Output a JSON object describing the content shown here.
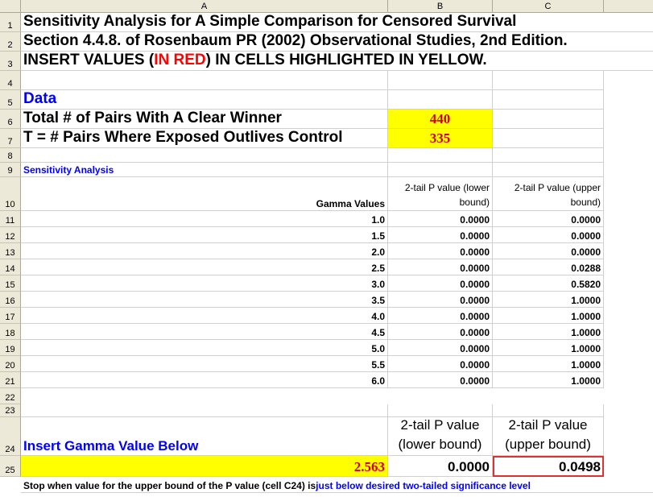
{
  "columns": [
    "A",
    "B",
    "C"
  ],
  "rows": [
    "1",
    "2",
    "3",
    "4",
    "5",
    "6",
    "7",
    "8",
    "9",
    "10",
    "11",
    "12",
    "13",
    "14",
    "15",
    "16",
    "17",
    "18",
    "19",
    "20",
    "21",
    "22",
    "23",
    "24",
    "25"
  ],
  "title": "Sensitivity Analysis for A Simple Comparison for Censored Survival",
  "section": "Section 4.4.8. of Rosenbaum PR (2002) Observational Studies, 2nd Edition.",
  "instruction": {
    "before": "INSERT VALUES (",
    "red": "IN RED",
    "after": ") IN CELLS HIGHLIGHTED IN YELLOW."
  },
  "data_heading": "Data",
  "total_pairs_label": "Total # of Pairs With A Clear Winner",
  "total_pairs_value": "440",
  "t_label": "T = # Pairs Where Exposed Outlives Control",
  "t_value": "335",
  "sensitivity_heading": "Sensitivity Analysis",
  "table": {
    "gamma_header": "Gamma Values",
    "lower_header": "2-tail P value (lower bound)",
    "upper_header": "2-tail P value (upper bound)",
    "rows": [
      {
        "gamma": "1.0",
        "lower": "0.0000",
        "upper": "0.0000"
      },
      {
        "gamma": "1.5",
        "lower": "0.0000",
        "upper": "0.0000"
      },
      {
        "gamma": "2.0",
        "lower": "0.0000",
        "upper": "0.0000"
      },
      {
        "gamma": "2.5",
        "lower": "0.0000",
        "upper": "0.0288"
      },
      {
        "gamma": "3.0",
        "lower": "0.0000",
        "upper": "0.5820"
      },
      {
        "gamma": "3.5",
        "lower": "0.0000",
        "upper": "1.0000"
      },
      {
        "gamma": "4.0",
        "lower": "0.0000",
        "upper": "1.0000"
      },
      {
        "gamma": "4.5",
        "lower": "0.0000",
        "upper": "1.0000"
      },
      {
        "gamma": "5.0",
        "lower": "0.0000",
        "upper": "1.0000"
      },
      {
        "gamma": "5.5",
        "lower": "0.0000",
        "upper": "1.0000"
      },
      {
        "gamma": "6.0",
        "lower": "0.0000",
        "upper": "1.0000"
      }
    ]
  },
  "insert_gamma_label": "Insert Gamma Value Below",
  "lower_header_big": "2-tail P value (lower bound)",
  "upper_header_big": "2-tail P value (upper bound)",
  "gamma_input": "2.563",
  "lower_result": "0.0000",
  "upper_result": "0.0498",
  "footer": {
    "black": "Stop when value for the upper bound of the P value (cell C24) is ",
    "blue": "just below desired two-tailed significance level"
  },
  "colors": {
    "yellow": "#ffff00",
    "blue": "#0000ff",
    "red": "#ff0000",
    "header_bg": "#ece9d8"
  }
}
